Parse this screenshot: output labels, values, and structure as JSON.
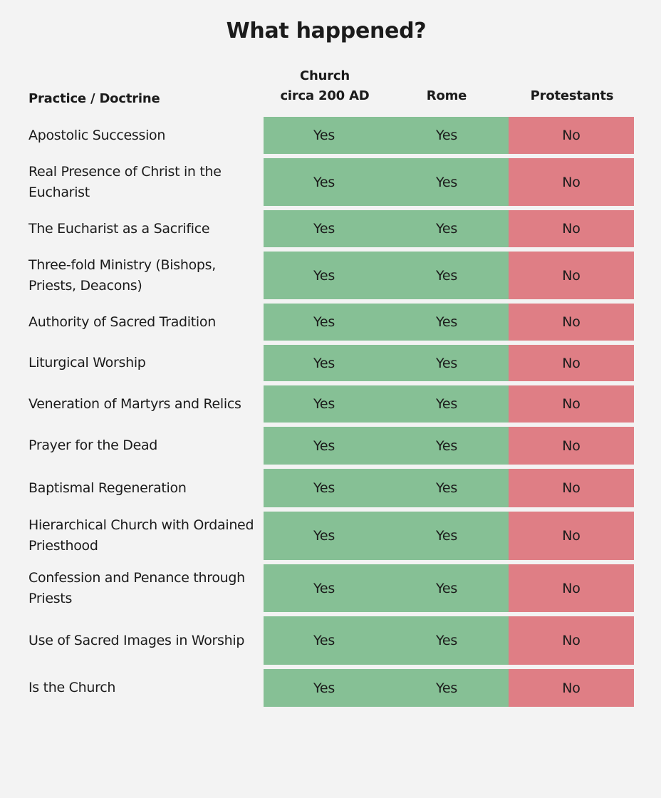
{
  "title": "What happened?",
  "headers": {
    "practice": "Practice / Doctrine",
    "church_line1": "Church",
    "church_line2": "circa 200 AD",
    "rome": "Rome",
    "protestants": "Protestants"
  },
  "colors": {
    "yes_cell": "#86c095",
    "no_cell": "#df7e85",
    "background": "#f3f3f3"
  },
  "rows": [
    {
      "practice": "Apostolic Succession",
      "church": "Yes",
      "rome": "Yes",
      "protestants": "No"
    },
    {
      "practice": "Real Presence of Christ in the Eucharist",
      "church": "Yes",
      "rome": "Yes",
      "protestants": "No"
    },
    {
      "practice": "The Eucharist as a Sacrifice",
      "church": "Yes",
      "rome": "Yes",
      "protestants": "No"
    },
    {
      "practice": "Three-fold Ministry (Bishops, Priests, Deacons)",
      "church": "Yes",
      "rome": "Yes",
      "protestants": "No"
    },
    {
      "practice": "Authority of Sacred Tradition",
      "church": "Yes",
      "rome": "Yes",
      "protestants": "No"
    },
    {
      "practice": "Liturgical Worship",
      "church": "Yes",
      "rome": "Yes",
      "protestants": "No"
    },
    {
      "practice": "Veneration of Martyrs and Relics",
      "church": "Yes",
      "rome": "Yes",
      "protestants": "No"
    },
    {
      "practice": "Prayer for the Dead",
      "church": "Yes",
      "rome": "Yes",
      "protestants": "No"
    },
    {
      "practice": "Baptismal Regeneration",
      "church": "Yes",
      "rome": "Yes",
      "protestants": "No"
    },
    {
      "practice": "Hierarchical Church with Ordained Priesthood",
      "church": "Yes",
      "rome": "Yes",
      "protestants": "No"
    },
    {
      "practice": "Confession and Penance through Priests",
      "church": "Yes",
      "rome": "Yes",
      "protestants": "No"
    },
    {
      "practice": "Use of Sacred Images in Worship",
      "church": "Yes",
      "rome": "Yes",
      "protestants": "No"
    },
    {
      "practice": "Is the Church",
      "church": "Yes",
      "rome": "Yes",
      "protestants": "No"
    }
  ]
}
